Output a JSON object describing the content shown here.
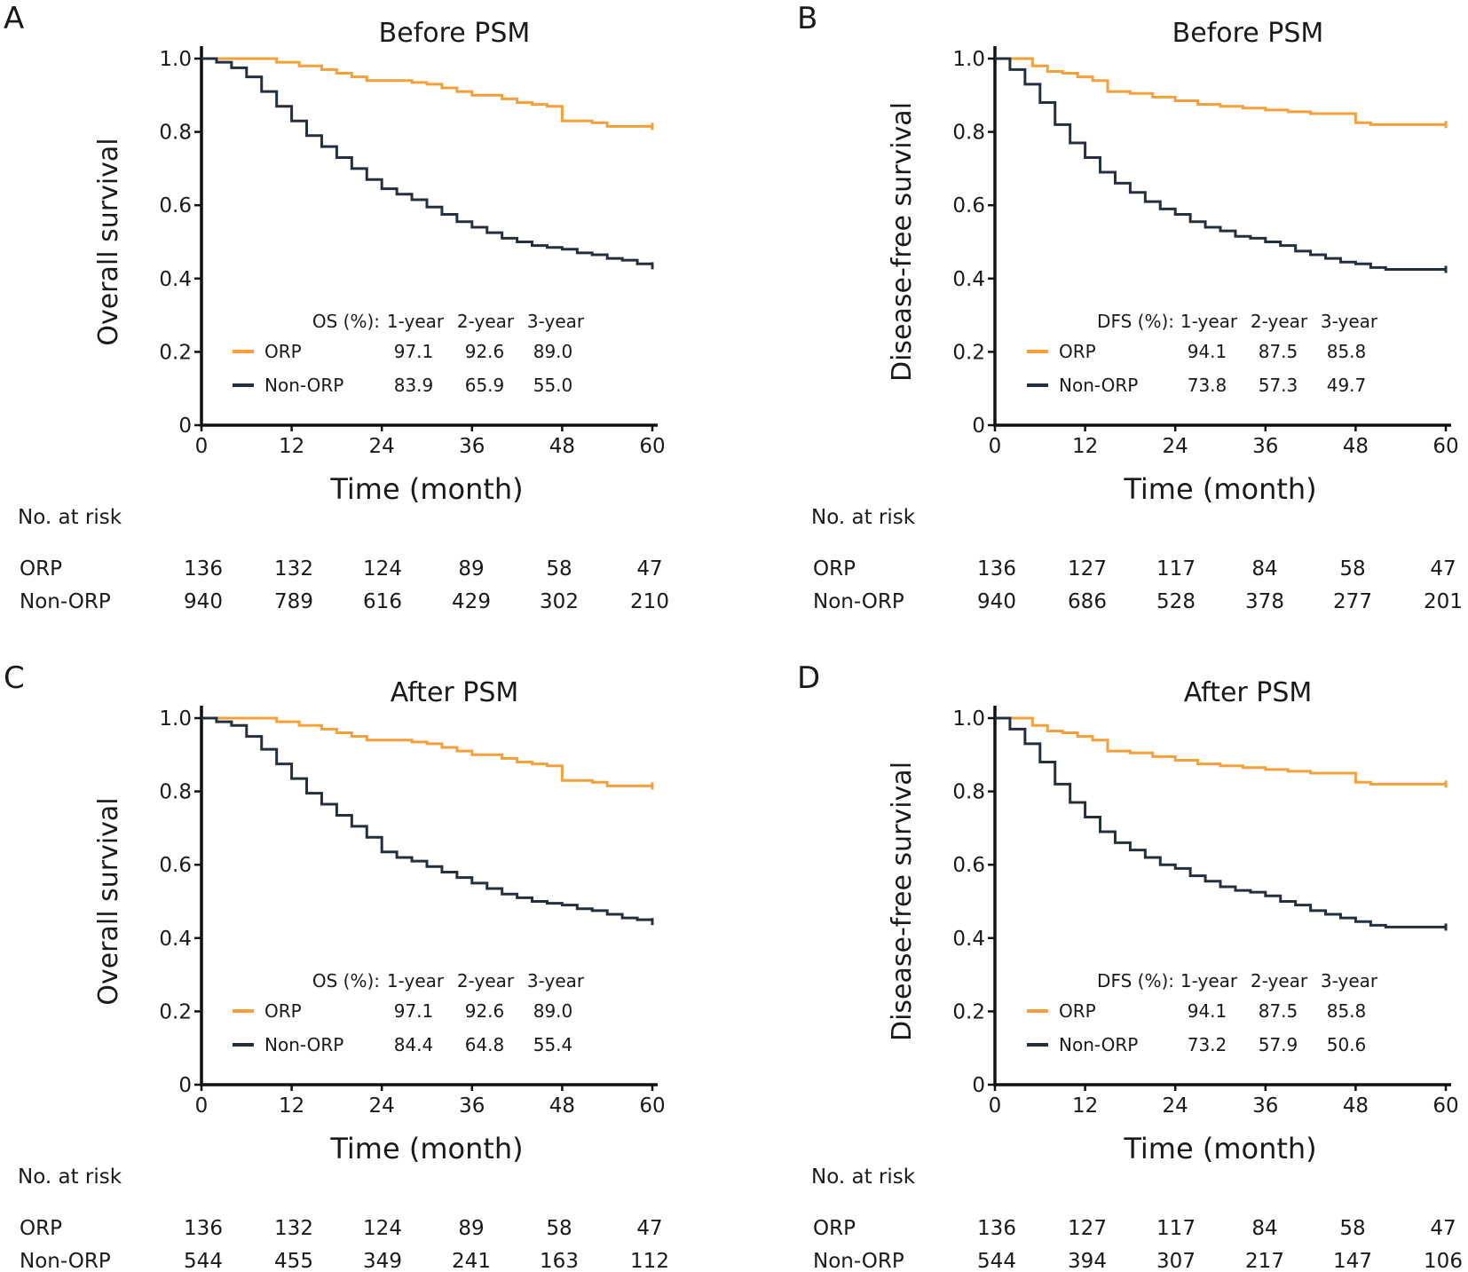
{
  "colors": {
    "orp": "#f5a03a",
    "non_orp": "#24303d",
    "axis": "#111111"
  },
  "chart_data": [
    {
      "type": "line",
      "panel": "A",
      "title": "Before PSM",
      "xlabel": "Time (month)",
      "ylabel": "Overall survival",
      "xlim": [
        0,
        60
      ],
      "ylim": [
        0,
        1
      ],
      "x_ticks": [
        "0",
        "12",
        "24",
        "36",
        "48",
        "60"
      ],
      "y_ticks": [
        "0",
        "0.2",
        "0.4",
        "0.6",
        "0.8",
        "1.0"
      ],
      "series": [
        {
          "name": "ORP",
          "x": [
            0,
            4,
            7,
            10,
            13,
            16,
            18,
            20,
            22,
            24,
            26,
            28,
            30,
            32,
            34,
            36,
            38,
            40,
            42,
            44,
            46,
            48,
            50,
            52,
            54,
            56,
            58,
            60
          ],
          "y": [
            1.0,
            1.0,
            1.0,
            0.99,
            0.98,
            0.97,
            0.96,
            0.95,
            0.94,
            0.94,
            0.94,
            0.935,
            0.93,
            0.92,
            0.91,
            0.9,
            0.9,
            0.89,
            0.88,
            0.875,
            0.87,
            0.83,
            0.83,
            0.825,
            0.815,
            0.815,
            0.815,
            0.815
          ]
        },
        {
          "name": "Non-ORP",
          "x": [
            0,
            2,
            4,
            6,
            8,
            10,
            12,
            14,
            16,
            18,
            20,
            22,
            24,
            26,
            28,
            30,
            32,
            34,
            36,
            38,
            40,
            42,
            44,
            46,
            48,
            50,
            52,
            54,
            56,
            58,
            60
          ],
          "y": [
            1.0,
            0.99,
            0.975,
            0.95,
            0.91,
            0.87,
            0.83,
            0.79,
            0.76,
            0.73,
            0.7,
            0.67,
            0.645,
            0.63,
            0.615,
            0.595,
            0.575,
            0.555,
            0.54,
            0.525,
            0.51,
            0.5,
            0.49,
            0.485,
            0.48,
            0.47,
            0.465,
            0.455,
            0.45,
            0.44,
            0.435
          ]
        }
      ],
      "legend": {
        "header": "OS (%):",
        "columns": [
          "1-year",
          "2-year",
          "3-year"
        ],
        "rows": [
          {
            "label": "ORP",
            "values": [
              "97.1",
              "92.6",
              "89.0"
            ]
          },
          {
            "label": "Non-ORP",
            "values": [
              "83.9",
              "65.9",
              "55.0"
            ]
          }
        ]
      },
      "risk_table": {
        "title": "No. at risk",
        "rows": [
          {
            "label": "ORP",
            "values": [
              "136",
              "132",
              "124",
              "89",
              "58",
              "47"
            ]
          },
          {
            "label": "Non-ORP",
            "values": [
              "940",
              "789",
              "616",
              "429",
              "302",
              "210"
            ]
          }
        ]
      }
    },
    {
      "type": "line",
      "panel": "B",
      "title": "Before PSM",
      "xlabel": "Time (month)",
      "ylabel": "Disease-free survival",
      "xlim": [
        0,
        60
      ],
      "ylim": [
        0,
        1
      ],
      "x_ticks": [
        "0",
        "12",
        "24",
        "36",
        "48",
        "60"
      ],
      "y_ticks": [
        "0",
        "0.2",
        "0.4",
        "0.6",
        "0.8",
        "1.0"
      ],
      "series": [
        {
          "name": "ORP",
          "x": [
            0,
            3,
            5,
            7,
            9,
            11,
            13,
            15,
            18,
            21,
            24,
            27,
            30,
            33,
            36,
            39,
            42,
            45,
            47,
            48,
            50,
            54,
            58,
            60
          ],
          "y": [
            1.0,
            1.0,
            0.98,
            0.965,
            0.96,
            0.95,
            0.94,
            0.91,
            0.905,
            0.895,
            0.885,
            0.875,
            0.87,
            0.865,
            0.86,
            0.855,
            0.85,
            0.85,
            0.85,
            0.825,
            0.82,
            0.82,
            0.82,
            0.82
          ]
        },
        {
          "name": "Non-ORP",
          "x": [
            0,
            2,
            4,
            6,
            8,
            10,
            12,
            14,
            16,
            18,
            20,
            22,
            24,
            26,
            28,
            30,
            32,
            34,
            36,
            38,
            40,
            42,
            44,
            46,
            48,
            50,
            52,
            54,
            56,
            58,
            60
          ],
          "y": [
            1.0,
            0.97,
            0.93,
            0.88,
            0.82,
            0.77,
            0.73,
            0.69,
            0.66,
            0.635,
            0.61,
            0.59,
            0.575,
            0.555,
            0.54,
            0.53,
            0.515,
            0.51,
            0.5,
            0.49,
            0.475,
            0.465,
            0.455,
            0.445,
            0.44,
            0.43,
            0.425,
            0.425,
            0.425,
            0.425,
            0.425
          ]
        }
      ],
      "legend": {
        "header": "DFS (%):",
        "columns": [
          "1-year",
          "2-year",
          "3-year"
        ],
        "rows": [
          {
            "label": "ORP",
            "values": [
              "94.1",
              "87.5",
              "85.8"
            ]
          },
          {
            "label": "Non-ORP",
            "values": [
              "73.8",
              "57.3",
              "49.7"
            ]
          }
        ]
      },
      "risk_table": {
        "title": "No. at risk",
        "rows": [
          {
            "label": "ORP",
            "values": [
              "136",
              "127",
              "117",
              "84",
              "58",
              "47"
            ]
          },
          {
            "label": "Non-ORP",
            "values": [
              "940",
              "686",
              "528",
              "378",
              "277",
              "201"
            ]
          }
        ]
      }
    },
    {
      "type": "line",
      "panel": "C",
      "title": "After PSM",
      "xlabel": "Time (month)",
      "ylabel": "Overall survival",
      "xlim": [
        0,
        60
      ],
      "ylim": [
        0,
        1
      ],
      "x_ticks": [
        "0",
        "12",
        "24",
        "36",
        "48",
        "60"
      ],
      "y_ticks": [
        "0",
        "0.2",
        "0.4",
        "0.6",
        "0.8",
        "1.0"
      ],
      "series": [
        {
          "name": "ORP",
          "x": [
            0,
            4,
            7,
            10,
            13,
            16,
            18,
            20,
            22,
            24,
            26,
            28,
            30,
            32,
            34,
            36,
            38,
            40,
            42,
            44,
            46,
            48,
            50,
            52,
            54,
            56,
            58,
            60
          ],
          "y": [
            1.0,
            1.0,
            1.0,
            0.99,
            0.98,
            0.97,
            0.96,
            0.95,
            0.94,
            0.94,
            0.94,
            0.935,
            0.93,
            0.92,
            0.91,
            0.9,
            0.9,
            0.89,
            0.88,
            0.875,
            0.87,
            0.83,
            0.83,
            0.825,
            0.815,
            0.815,
            0.815,
            0.815
          ]
        },
        {
          "name": "Non-ORP",
          "x": [
            0,
            2,
            4,
            6,
            8,
            10,
            12,
            14,
            16,
            18,
            20,
            22,
            24,
            26,
            28,
            30,
            32,
            34,
            36,
            38,
            40,
            42,
            44,
            46,
            48,
            50,
            52,
            54,
            56,
            58,
            60
          ],
          "y": [
            1.0,
            0.99,
            0.98,
            0.95,
            0.915,
            0.875,
            0.835,
            0.795,
            0.765,
            0.735,
            0.705,
            0.675,
            0.635,
            0.62,
            0.61,
            0.595,
            0.58,
            0.565,
            0.55,
            0.535,
            0.52,
            0.51,
            0.5,
            0.495,
            0.49,
            0.48,
            0.475,
            0.465,
            0.455,
            0.45,
            0.445
          ]
        }
      ],
      "legend": {
        "header": "OS (%):",
        "columns": [
          "1-year",
          "2-year",
          "3-year"
        ],
        "rows": [
          {
            "label": "ORP",
            "values": [
              "97.1",
              "92.6",
              "89.0"
            ]
          },
          {
            "label": "Non-ORP",
            "values": [
              "84.4",
              "64.8",
              "55.4"
            ]
          }
        ]
      },
      "risk_table": {
        "title": "No. at risk",
        "rows": [
          {
            "label": "ORP",
            "values": [
              "136",
              "132",
              "124",
              "89",
              "58",
              "47"
            ]
          },
          {
            "label": "Non-ORP",
            "values": [
              "544",
              "455",
              "349",
              "241",
              "163",
              "112"
            ]
          }
        ]
      }
    },
    {
      "type": "line",
      "panel": "D",
      "title": "After PSM",
      "xlabel": "Time (month)",
      "ylabel": "Disease-free survival",
      "xlim": [
        0,
        60
      ],
      "ylim": [
        0,
        1
      ],
      "x_ticks": [
        "0",
        "12",
        "24",
        "36",
        "48",
        "60"
      ],
      "y_ticks": [
        "0",
        "0.2",
        "0.4",
        "0.6",
        "0.8",
        "1.0"
      ],
      "series": [
        {
          "name": "ORP",
          "x": [
            0,
            3,
            5,
            7,
            9,
            11,
            13,
            15,
            18,
            21,
            24,
            27,
            30,
            33,
            36,
            39,
            42,
            45,
            47,
            48,
            50,
            54,
            58,
            60
          ],
          "y": [
            1.0,
            1.0,
            0.98,
            0.965,
            0.96,
            0.95,
            0.94,
            0.91,
            0.905,
            0.895,
            0.885,
            0.875,
            0.87,
            0.865,
            0.86,
            0.855,
            0.85,
            0.85,
            0.85,
            0.825,
            0.82,
            0.82,
            0.82,
            0.82
          ]
        },
        {
          "name": "Non-ORP",
          "x": [
            0,
            2,
            4,
            6,
            8,
            10,
            12,
            14,
            16,
            18,
            20,
            22,
            24,
            26,
            28,
            30,
            32,
            34,
            36,
            38,
            40,
            42,
            44,
            46,
            48,
            50,
            52,
            54,
            56,
            58,
            60
          ],
          "y": [
            1.0,
            0.97,
            0.93,
            0.88,
            0.82,
            0.77,
            0.73,
            0.69,
            0.66,
            0.64,
            0.62,
            0.6,
            0.59,
            0.57,
            0.555,
            0.54,
            0.53,
            0.525,
            0.515,
            0.5,
            0.49,
            0.475,
            0.465,
            0.455,
            0.445,
            0.435,
            0.43,
            0.43,
            0.43,
            0.43,
            0.43
          ]
        }
      ],
      "legend": {
        "header": "DFS (%):",
        "columns": [
          "1-year",
          "2-year",
          "3-year"
        ],
        "rows": [
          {
            "label": "ORP",
            "values": [
              "94.1",
              "87.5",
              "85.8"
            ]
          },
          {
            "label": "Non-ORP",
            "values": [
              "73.2",
              "57.9",
              "50.6"
            ]
          }
        ]
      },
      "risk_table": {
        "title": "No. at risk",
        "rows": [
          {
            "label": "ORP",
            "values": [
              "136",
              "127",
              "117",
              "84",
              "58",
              "47"
            ]
          },
          {
            "label": "Non-ORP",
            "values": [
              "544",
              "394",
              "307",
              "217",
              "147",
              "106"
            ]
          }
        ]
      }
    }
  ]
}
